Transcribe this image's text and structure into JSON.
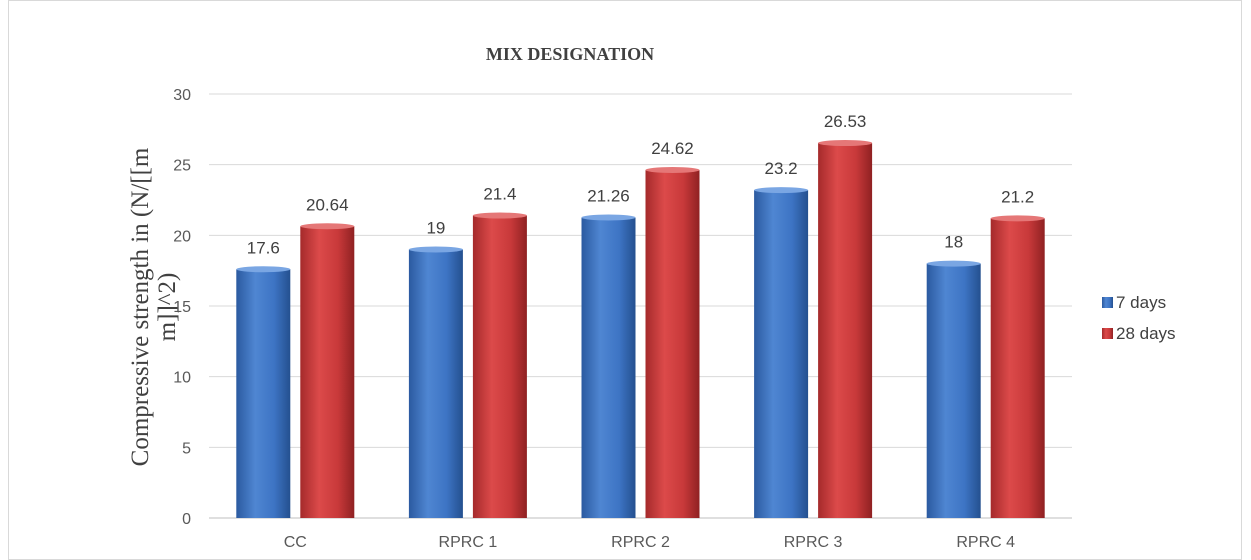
{
  "chart_data": {
    "type": "bar",
    "title": "MIX DESIGNATION",
    "ylabel_lines": [
      "Compressive strength in (N/[[m",
      "m]]^2)"
    ],
    "xlabel": "",
    "categories": [
      "CC",
      "RPRC 1",
      "RPRC 2",
      "RPRC 3",
      "RPRC 4"
    ],
    "series": [
      {
        "name": "7 days",
        "color": "#3d74c4",
        "values": [
          17.6,
          19,
          21.26,
          23.2,
          18
        ],
        "labels": [
          "17.6",
          "19",
          "21.26",
          "23.2",
          "18"
        ]
      },
      {
        "name": "28 days",
        "color": "#c8393a",
        "values": [
          20.64,
          21.4,
          24.62,
          26.53,
          21.2
        ],
        "labels": [
          "20.64",
          "21.4",
          "24.62",
          "26.53",
          "21.2"
        ]
      }
    ],
    "ylim": [
      0,
      30
    ],
    "yticks": [
      0,
      5,
      10,
      15,
      20,
      25,
      30
    ],
    "grid": true,
    "legend_position": "right"
  }
}
